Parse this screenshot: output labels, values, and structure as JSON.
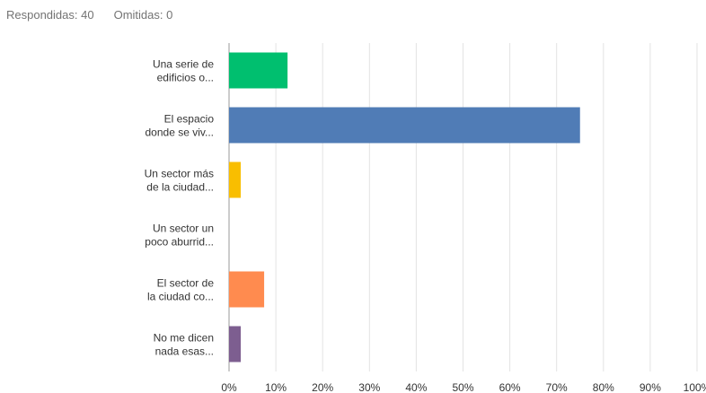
{
  "summary": {
    "answered_label": "Respondidas: 40",
    "skipped_label": "Omitidas: 0"
  },
  "chart_data": {
    "type": "bar",
    "orientation": "horizontal",
    "xlim": [
      0,
      100
    ],
    "ticks": [
      "0%",
      "10%",
      "20%",
      "30%",
      "40%",
      "50%",
      "60%",
      "70%",
      "80%",
      "90%",
      "100%"
    ],
    "grid": true,
    "categories": [
      [
        "Una serie de",
        "edificios o..."
      ],
      [
        "El espacio",
        "donde se viv..."
      ],
      [
        "Un sector más",
        "de la ciudad..."
      ],
      [
        "Un sector un",
        "poco aburrid..."
      ],
      [
        "El sector de",
        "la ciudad co..."
      ],
      [
        "No me dicen",
        "nada esas..."
      ]
    ],
    "values": [
      12.5,
      75,
      2.5,
      0,
      7.5,
      2.5
    ],
    "colors": [
      "#00bf6f",
      "#507cb6",
      "#f9be00",
      "#6bc8cd",
      "#ff8b4f",
      "#7d5e90"
    ]
  }
}
